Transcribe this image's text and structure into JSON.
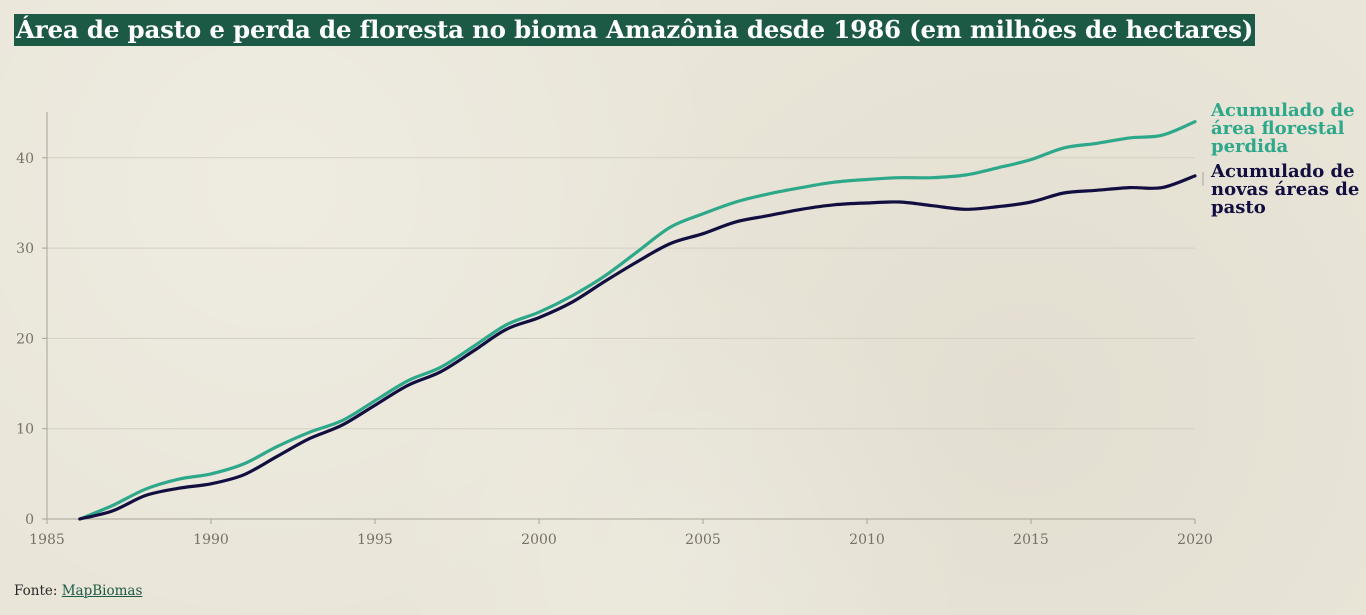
{
  "title": "Área de pasto e perda de floresta no bioma Amazônia desde 1986 (em milhões de hectares)",
  "source": {
    "prefix": "Fonte:",
    "link_text": "MapBiomas"
  },
  "colors": {
    "floresta": "#2ea88a",
    "pasto": "#120f40",
    "title_bg": "#1d5a45",
    "grid": "#d3cfc4",
    "axis": "#a8a496"
  },
  "chart_data": {
    "type": "line",
    "title": "Área de pasto e perda de floresta no bioma Amazônia desde 1986 (em milhões de hectares)",
    "xlabel": "",
    "ylabel": "",
    "xlim": [
      1985,
      2020
    ],
    "ylim": [
      0,
      45
    ],
    "x_ticks": [
      1985,
      1990,
      1995,
      2000,
      2005,
      2010,
      2015,
      2020
    ],
    "y_ticks": [
      0,
      10,
      20,
      30,
      40
    ],
    "grid": "horizontal",
    "legend": "direct labels at line ends (right)",
    "x": [
      1986,
      1987,
      1988,
      1989,
      1990,
      1991,
      1992,
      1993,
      1994,
      1995,
      1996,
      1997,
      1998,
      1999,
      2000,
      2001,
      2002,
      2003,
      2004,
      2005,
      2006,
      2007,
      2008,
      2009,
      2010,
      2011,
      2012,
      2013,
      2014,
      2015,
      2016,
      2017,
      2018,
      2019,
      2020
    ],
    "series": [
      {
        "name": "Acumulado de área florestal perdida",
        "color": "#2ea88a",
        "values": [
          0,
          1.5,
          3.3,
          4.4,
          5.0,
          6.1,
          8.0,
          9.6,
          10.9,
          13.1,
          15.3,
          16.8,
          19.1,
          21.5,
          22.9,
          24.7,
          26.9,
          29.6,
          32.3,
          33.8,
          35.1,
          36.0,
          36.7,
          37.3,
          37.6,
          37.8,
          37.8,
          38.1,
          38.9,
          39.8,
          41.1,
          41.6,
          42.2,
          42.5,
          44.0
        ]
      },
      {
        "name": "Acumulado de novas áreas de pasto",
        "color": "#120f40",
        "values": [
          0,
          0.9,
          2.6,
          3.4,
          3.9,
          4.9,
          6.9,
          8.9,
          10.4,
          12.6,
          14.8,
          16.3,
          18.6,
          21.0,
          22.3,
          24.0,
          26.3,
          28.5,
          30.5,
          31.6,
          32.9,
          33.6,
          34.3,
          34.8,
          35.0,
          35.1,
          34.7,
          34.3,
          34.6,
          35.1,
          36.1,
          36.4,
          36.7,
          36.7,
          38.0
        ]
      }
    ]
  }
}
